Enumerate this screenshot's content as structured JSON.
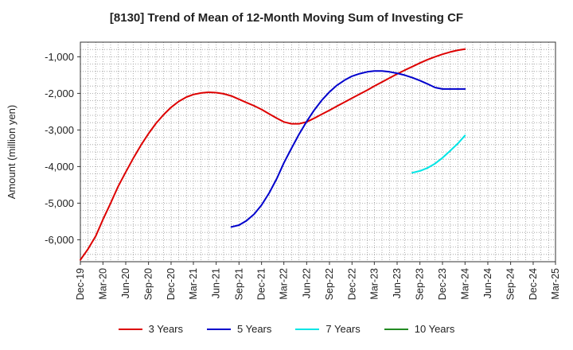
{
  "chart_data": {
    "type": "line",
    "title": "[8130]  Trend of Mean of 12-Month Moving Sum of Investing CF",
    "ylabel": "Amount (million yen)",
    "xlabel": "",
    "ylim": [
      -6600,
      -600
    ],
    "y_ticks": [
      -1000,
      -2000,
      -3000,
      -4000,
      -5000,
      -6000
    ],
    "y_tick_labels": [
      "-1,000",
      "-2,000",
      "-3,000",
      "-4,000",
      "-5,000",
      "-6,000"
    ],
    "x_ticks": [
      "Dec-19",
      "Mar-20",
      "Jun-20",
      "Sep-20",
      "Dec-20",
      "Mar-21",
      "Jun-21",
      "Sep-21",
      "Dec-21",
      "Mar-22",
      "Jun-22",
      "Sep-22",
      "Dec-22",
      "Mar-23",
      "Jun-23",
      "Sep-23",
      "Dec-23",
      "Mar-24",
      "Jun-24",
      "Sep-24",
      "Dec-24",
      "Mar-25"
    ],
    "grid": true,
    "legend_position": "bottom",
    "series": [
      {
        "name": "3 Years",
        "color": "#dd0000",
        "x": [
          "2019-12",
          "2020-01",
          "2020-02",
          "2020-03",
          "2020-04",
          "2020-05",
          "2020-06",
          "2020-07",
          "2020-08",
          "2020-09",
          "2020-10",
          "2020-11",
          "2020-12",
          "2021-01",
          "2021-02",
          "2021-03",
          "2021-04",
          "2021-05",
          "2021-06",
          "2021-07",
          "2021-08",
          "2021-09",
          "2021-10",
          "2021-11",
          "2021-12",
          "2022-01",
          "2022-02",
          "2022-03",
          "2022-04",
          "2022-05",
          "2022-06",
          "2022-07",
          "2022-08",
          "2022-09",
          "2022-10",
          "2022-11",
          "2022-12",
          "2023-01",
          "2023-02",
          "2023-03",
          "2023-04",
          "2023-05",
          "2023-06",
          "2023-07",
          "2023-08",
          "2023-09",
          "2023-10",
          "2023-11",
          "2023-12",
          "2024-01",
          "2024-02",
          "2024-03"
        ],
        "y": [
          -6550,
          -6250,
          -5900,
          -5450,
          -5000,
          -4550,
          -4150,
          -3780,
          -3420,
          -3100,
          -2820,
          -2580,
          -2380,
          -2220,
          -2100,
          -2030,
          -1990,
          -1970,
          -1980,
          -2010,
          -2070,
          -2160,
          -2250,
          -2340,
          -2440,
          -2560,
          -2680,
          -2780,
          -2830,
          -2830,
          -2780,
          -2680,
          -2570,
          -2460,
          -2350,
          -2240,
          -2130,
          -2020,
          -1910,
          -1800,
          -1690,
          -1580,
          -1470,
          -1370,
          -1270,
          -1170,
          -1080,
          -1000,
          -930,
          -870,
          -820,
          -790
        ]
      },
      {
        "name": "5 Years",
        "color": "#0000cc",
        "x": [
          "2021-08",
          "2021-09",
          "2021-10",
          "2021-11",
          "2021-12",
          "2022-01",
          "2022-02",
          "2022-03",
          "2022-04",
          "2022-05",
          "2022-06",
          "2022-07",
          "2022-08",
          "2022-09",
          "2022-10",
          "2022-11",
          "2022-12",
          "2023-01",
          "2023-02",
          "2023-03",
          "2023-04",
          "2023-05",
          "2023-06",
          "2023-07",
          "2023-08",
          "2023-09",
          "2023-10",
          "2023-11",
          "2023-12",
          "2024-01",
          "2024-02",
          "2024-03"
        ],
        "y": [
          -5650,
          -5600,
          -5480,
          -5300,
          -5050,
          -4720,
          -4320,
          -3900,
          -3500,
          -3120,
          -2770,
          -2460,
          -2190,
          -1960,
          -1780,
          -1640,
          -1530,
          -1460,
          -1410,
          -1390,
          -1390,
          -1410,
          -1450,
          -1500,
          -1570,
          -1650,
          -1740,
          -1840,
          -1880,
          -1880,
          -1880,
          -1880
        ]
      },
      {
        "name": "7 Years",
        "color": "#00e5e5",
        "x": [
          "2023-08",
          "2023-09",
          "2023-10",
          "2023-11",
          "2023-12",
          "2024-01",
          "2024-02",
          "2024-03"
        ],
        "y": [
          -4170,
          -4120,
          -4040,
          -3920,
          -3760,
          -3570,
          -3370,
          -3150
        ]
      },
      {
        "name": "10 Years",
        "color": "#228b22",
        "x": [],
        "y": []
      }
    ]
  }
}
